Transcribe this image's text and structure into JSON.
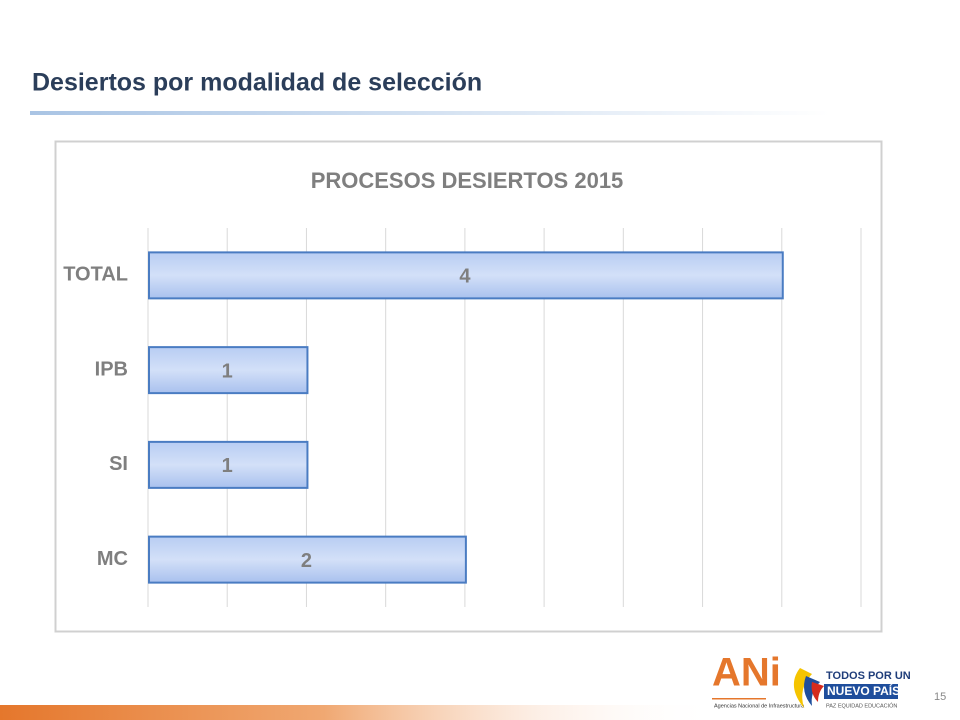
{
  "slide": {
    "title": "Desiertos por modalidad de selección",
    "page_number": "15",
    "logos": {
      "ani": "ANi",
      "ani_caption": "Agencias Nacional de Infraestructura",
      "gov_line1": "TODOS POR UN",
      "gov_line2": "NUEVO PAÍS",
      "gov_line3": "PAZ  EQUIDAD  EDUCACIÓN"
    }
  },
  "chart_data": {
    "type": "bar",
    "orientation": "horizontal",
    "title": "PROCESOS  DESIERTOS  2015",
    "categories": [
      "TOTAL",
      "IPB",
      "SI",
      "MC"
    ],
    "values": [
      4,
      1,
      1,
      2
    ],
    "color": "#4a7cc2",
    "xlim": [
      0,
      4.5
    ],
    "xticks": [
      0,
      0.5,
      1,
      1.5,
      2,
      2.5,
      3,
      3.5,
      4,
      4.5
    ],
    "grid": true
  }
}
